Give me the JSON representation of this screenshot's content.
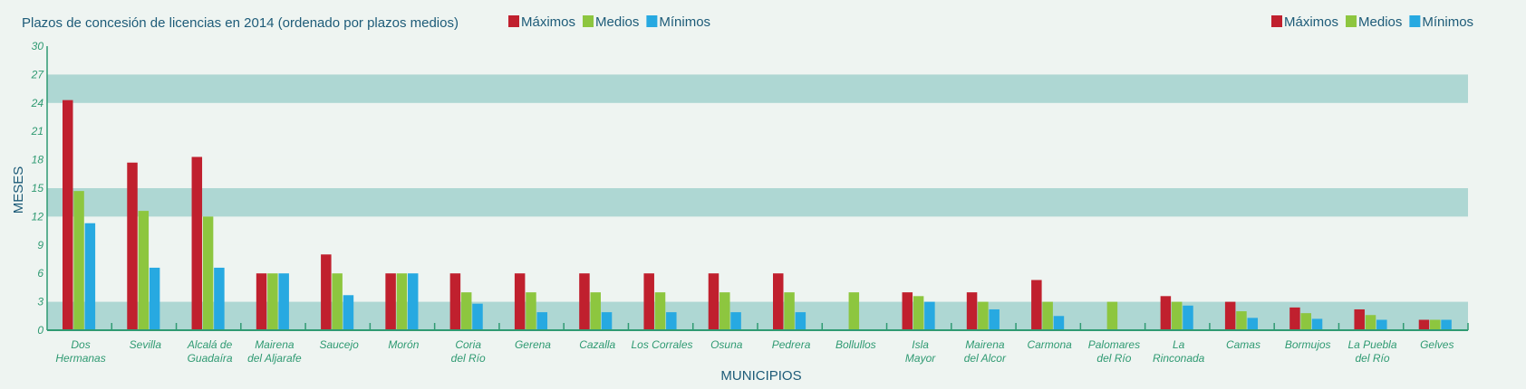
{
  "chart_data": {
    "type": "bar",
    "title": "Plazos de concesión de licencias en 2014 (ordenado por plazos medios)",
    "xlabel": "MUNICIPIOS",
    "ylabel": "MESES",
    "ylim": [
      0,
      30
    ],
    "yticks": [
      0,
      3,
      6,
      9,
      12,
      15,
      18,
      21,
      24,
      27,
      30
    ],
    "legend_position": "top",
    "grid": true,
    "categories": [
      "Dos Hermanas",
      "Sevilla",
      "Alcalá de Guadaíra",
      "Mairena del Aljarafe",
      "Saucejo",
      "Morón",
      "Coria del Río",
      "Gerena",
      "Cazalla",
      "Los Corrales",
      "Osuna",
      "Pedrera",
      "Bollullos",
      "Isla Mayor",
      "Mairena del Alcor",
      "Carmona",
      "Palomares del Río",
      "La Rinconada",
      "Camas",
      "Bormujos",
      "La Puebla del Río",
      "Gelves"
    ],
    "category_lines": [
      [
        "Dos",
        "Hermanas"
      ],
      [
        "Sevilla"
      ],
      [
        "Alcalá de",
        "Guadaíra"
      ],
      [
        "Mairena",
        "del Aljarafe"
      ],
      [
        "Saucejo"
      ],
      [
        "Morón"
      ],
      [
        "Coria",
        "del Río"
      ],
      [
        "Gerena"
      ],
      [
        "Cazalla"
      ],
      [
        "Los Corrales"
      ],
      [
        "Osuna"
      ],
      [
        "Pedrera"
      ],
      [
        "Bollullos"
      ],
      [
        "Isla",
        "Mayor"
      ],
      [
        "Mairena",
        "del Alcor"
      ],
      [
        "Carmona"
      ],
      [
        "Palomares",
        "del Río"
      ],
      [
        "La",
        "Rinconada"
      ],
      [
        "Camas"
      ],
      [
        "Bormujos"
      ],
      [
        "La Puebla",
        "del Río"
      ],
      [
        "Gelves"
      ]
    ],
    "series": [
      {
        "name": "Máximos",
        "color": "#c0202e",
        "values": [
          24.3,
          17.7,
          18.3,
          6,
          8,
          6,
          6,
          6,
          6,
          6,
          6,
          6,
          0,
          4,
          4,
          5.3,
          0,
          3.6,
          3,
          2.4,
          2.2,
          1.1
        ]
      },
      {
        "name": "Medios",
        "color": "#8dc63f",
        "values": [
          14.7,
          12.6,
          12,
          6,
          6,
          6,
          4,
          4,
          4,
          4,
          4,
          4,
          4,
          3.6,
          3,
          3,
          3,
          3,
          2,
          1.8,
          1.6,
          1.1
        ]
      },
      {
        "name": "Mínimos",
        "color": "#27a9e1",
        "values": [
          11.3,
          6.6,
          6.6,
          6,
          3.7,
          6,
          2.8,
          1.9,
          1.9,
          1.9,
          1.9,
          1.9,
          0,
          3,
          2.2,
          1.5,
          0,
          2.6,
          1.3,
          1.2,
          1.1,
          1.1
        ]
      }
    ]
  }
}
